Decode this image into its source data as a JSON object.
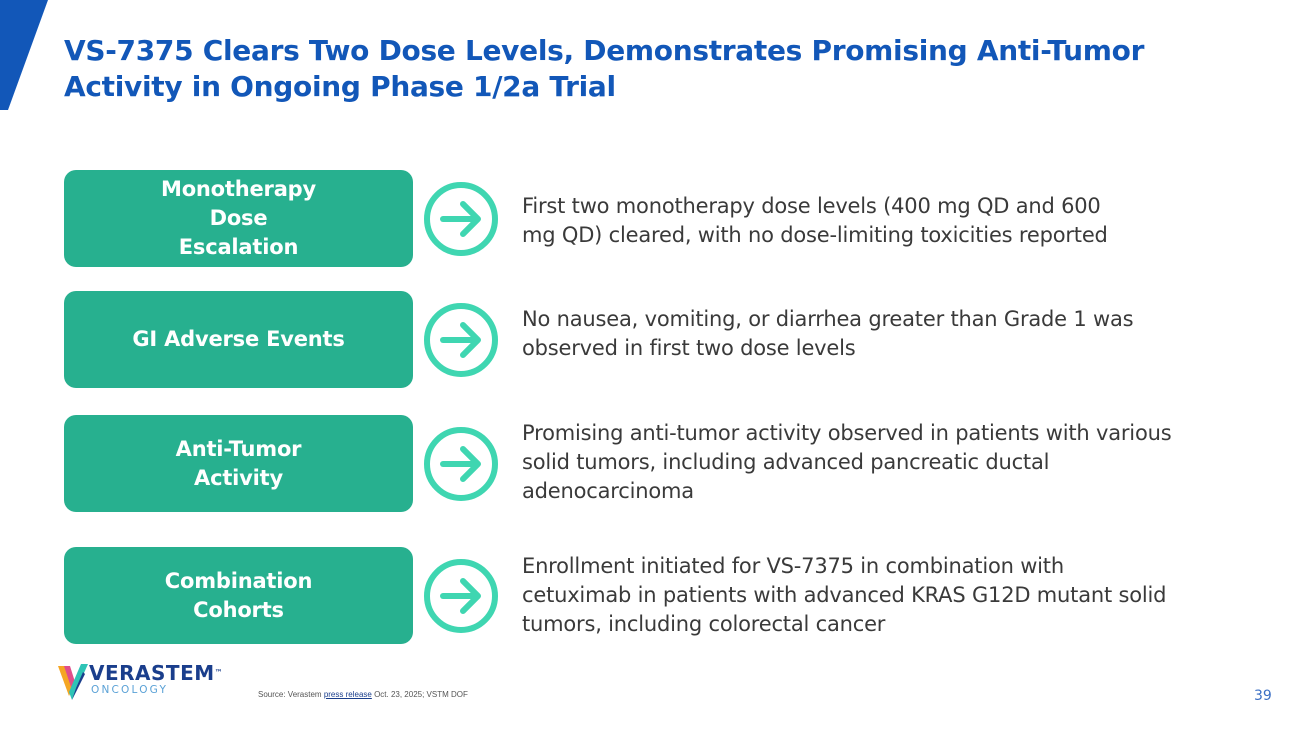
{
  "slide": {
    "title_lines": [
      "VS-7375 Clears Two Dose Levels, Demonstrates Promising Anti-Tumor",
      "Activity in Ongoing Phase 1/2a Trial"
    ],
    "page_number": "39"
  },
  "colors": {
    "title": "#1257b8",
    "pill": "#27b08f",
    "arrow": "#3fd6b1",
    "corner_bar": "#1257b8",
    "body_text": "#3a3a3a"
  },
  "rows": [
    {
      "label_lines": [
        "Monotherapy Dose",
        "Escalation"
      ],
      "desc_lines": [
        "First two monotherapy dose levels (400 mg QD and 600",
        "mg QD) cleared, with no dose-limiting toxicities reported"
      ],
      "icon": "arrow-right-circle-icon"
    },
    {
      "label_lines": [
        "GI Adverse Events"
      ],
      "desc_lines": [
        "No nausea, vomiting, or diarrhea greater than Grade 1 was",
        "observed in first two dose levels"
      ],
      "icon": "arrow-right-circle-icon"
    },
    {
      "label_lines": [
        "Anti-Tumor Activity"
      ],
      "desc_lines": [
        "Promising anti-tumor activity observed in patients with various",
        "solid tumors, including advanced pancreatic ductal",
        "adenocarcinoma"
      ],
      "icon": "arrow-right-circle-icon"
    },
    {
      "label_lines": [
        "Combination Cohorts"
      ],
      "desc_lines": [
        "Enrollment initiated for VS-7375 in combination with",
        "cetuximab in patients with advanced KRAS G12D mutant solid",
        "tumors, including colorectal cancer"
      ],
      "icon": "arrow-right-circle-icon"
    }
  ],
  "footer": {
    "logo_name": "VERASTEM",
    "logo_tm": "™",
    "logo_sub": "ONCOLOGY",
    "source_prefix": "Source: Verastem ",
    "source_link": "press release",
    "source_suffix": " Oct. 23, 2025; VSTM DOF"
  }
}
